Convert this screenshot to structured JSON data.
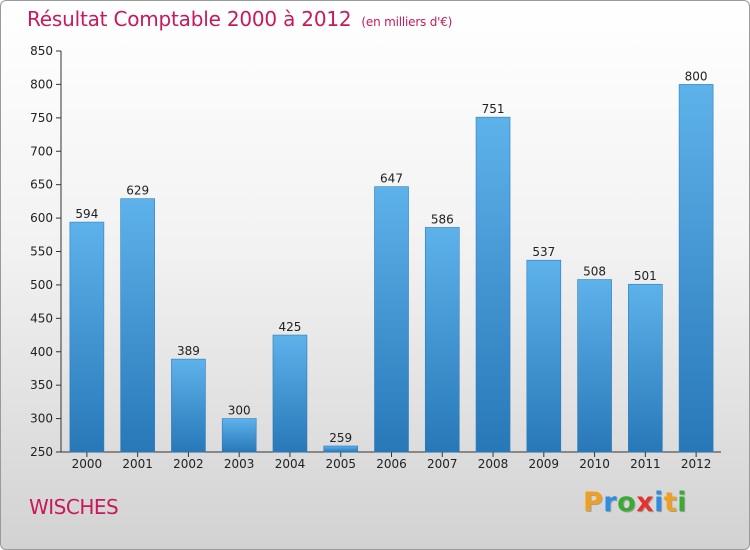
{
  "title": "Résultat Comptable 2000 à 2012",
  "subtitle": "(en milliers d'€)",
  "commune": "WISCHES",
  "logo": {
    "letters": [
      "P",
      "r",
      "o",
      "x",
      "i",
      "t",
      "i"
    ],
    "colors": [
      "#f0a020",
      "#2e8de0",
      "#3aaa35",
      "#e5322d",
      "#2e8de0",
      "#f0a020",
      "#3aaa35"
    ]
  },
  "colors": {
    "title": "#c8195c",
    "bar_light": "#5eb2ea",
    "bar_dark": "#2878b8"
  },
  "chart_data": {
    "type": "bar",
    "categories": [
      "2000",
      "2001",
      "2002",
      "2003",
      "2004",
      "2005",
      "2006",
      "2007",
      "2008",
      "2009",
      "2010",
      "2011",
      "2012"
    ],
    "values": [
      594,
      629,
      389,
      300,
      425,
      259,
      647,
      586,
      751,
      537,
      508,
      501,
      800
    ],
    "data_labels": [
      "594",
      "629",
      "389",
      "300",
      "425",
      "259",
      "647",
      "586",
      "751",
      "537",
      "508",
      "501",
      "800"
    ],
    "yticks": [
      "250",
      "300",
      "350",
      "400",
      "450",
      "500",
      "550",
      "600",
      "650",
      "700",
      "750",
      "800",
      "850"
    ],
    "ylim": [
      250,
      850
    ],
    "title": "Résultat Comptable 2000 à 2012",
    "subtitle": "(en milliers d'€)",
    "xlabel": "",
    "ylabel": "",
    "grid": false,
    "legend": "none"
  }
}
